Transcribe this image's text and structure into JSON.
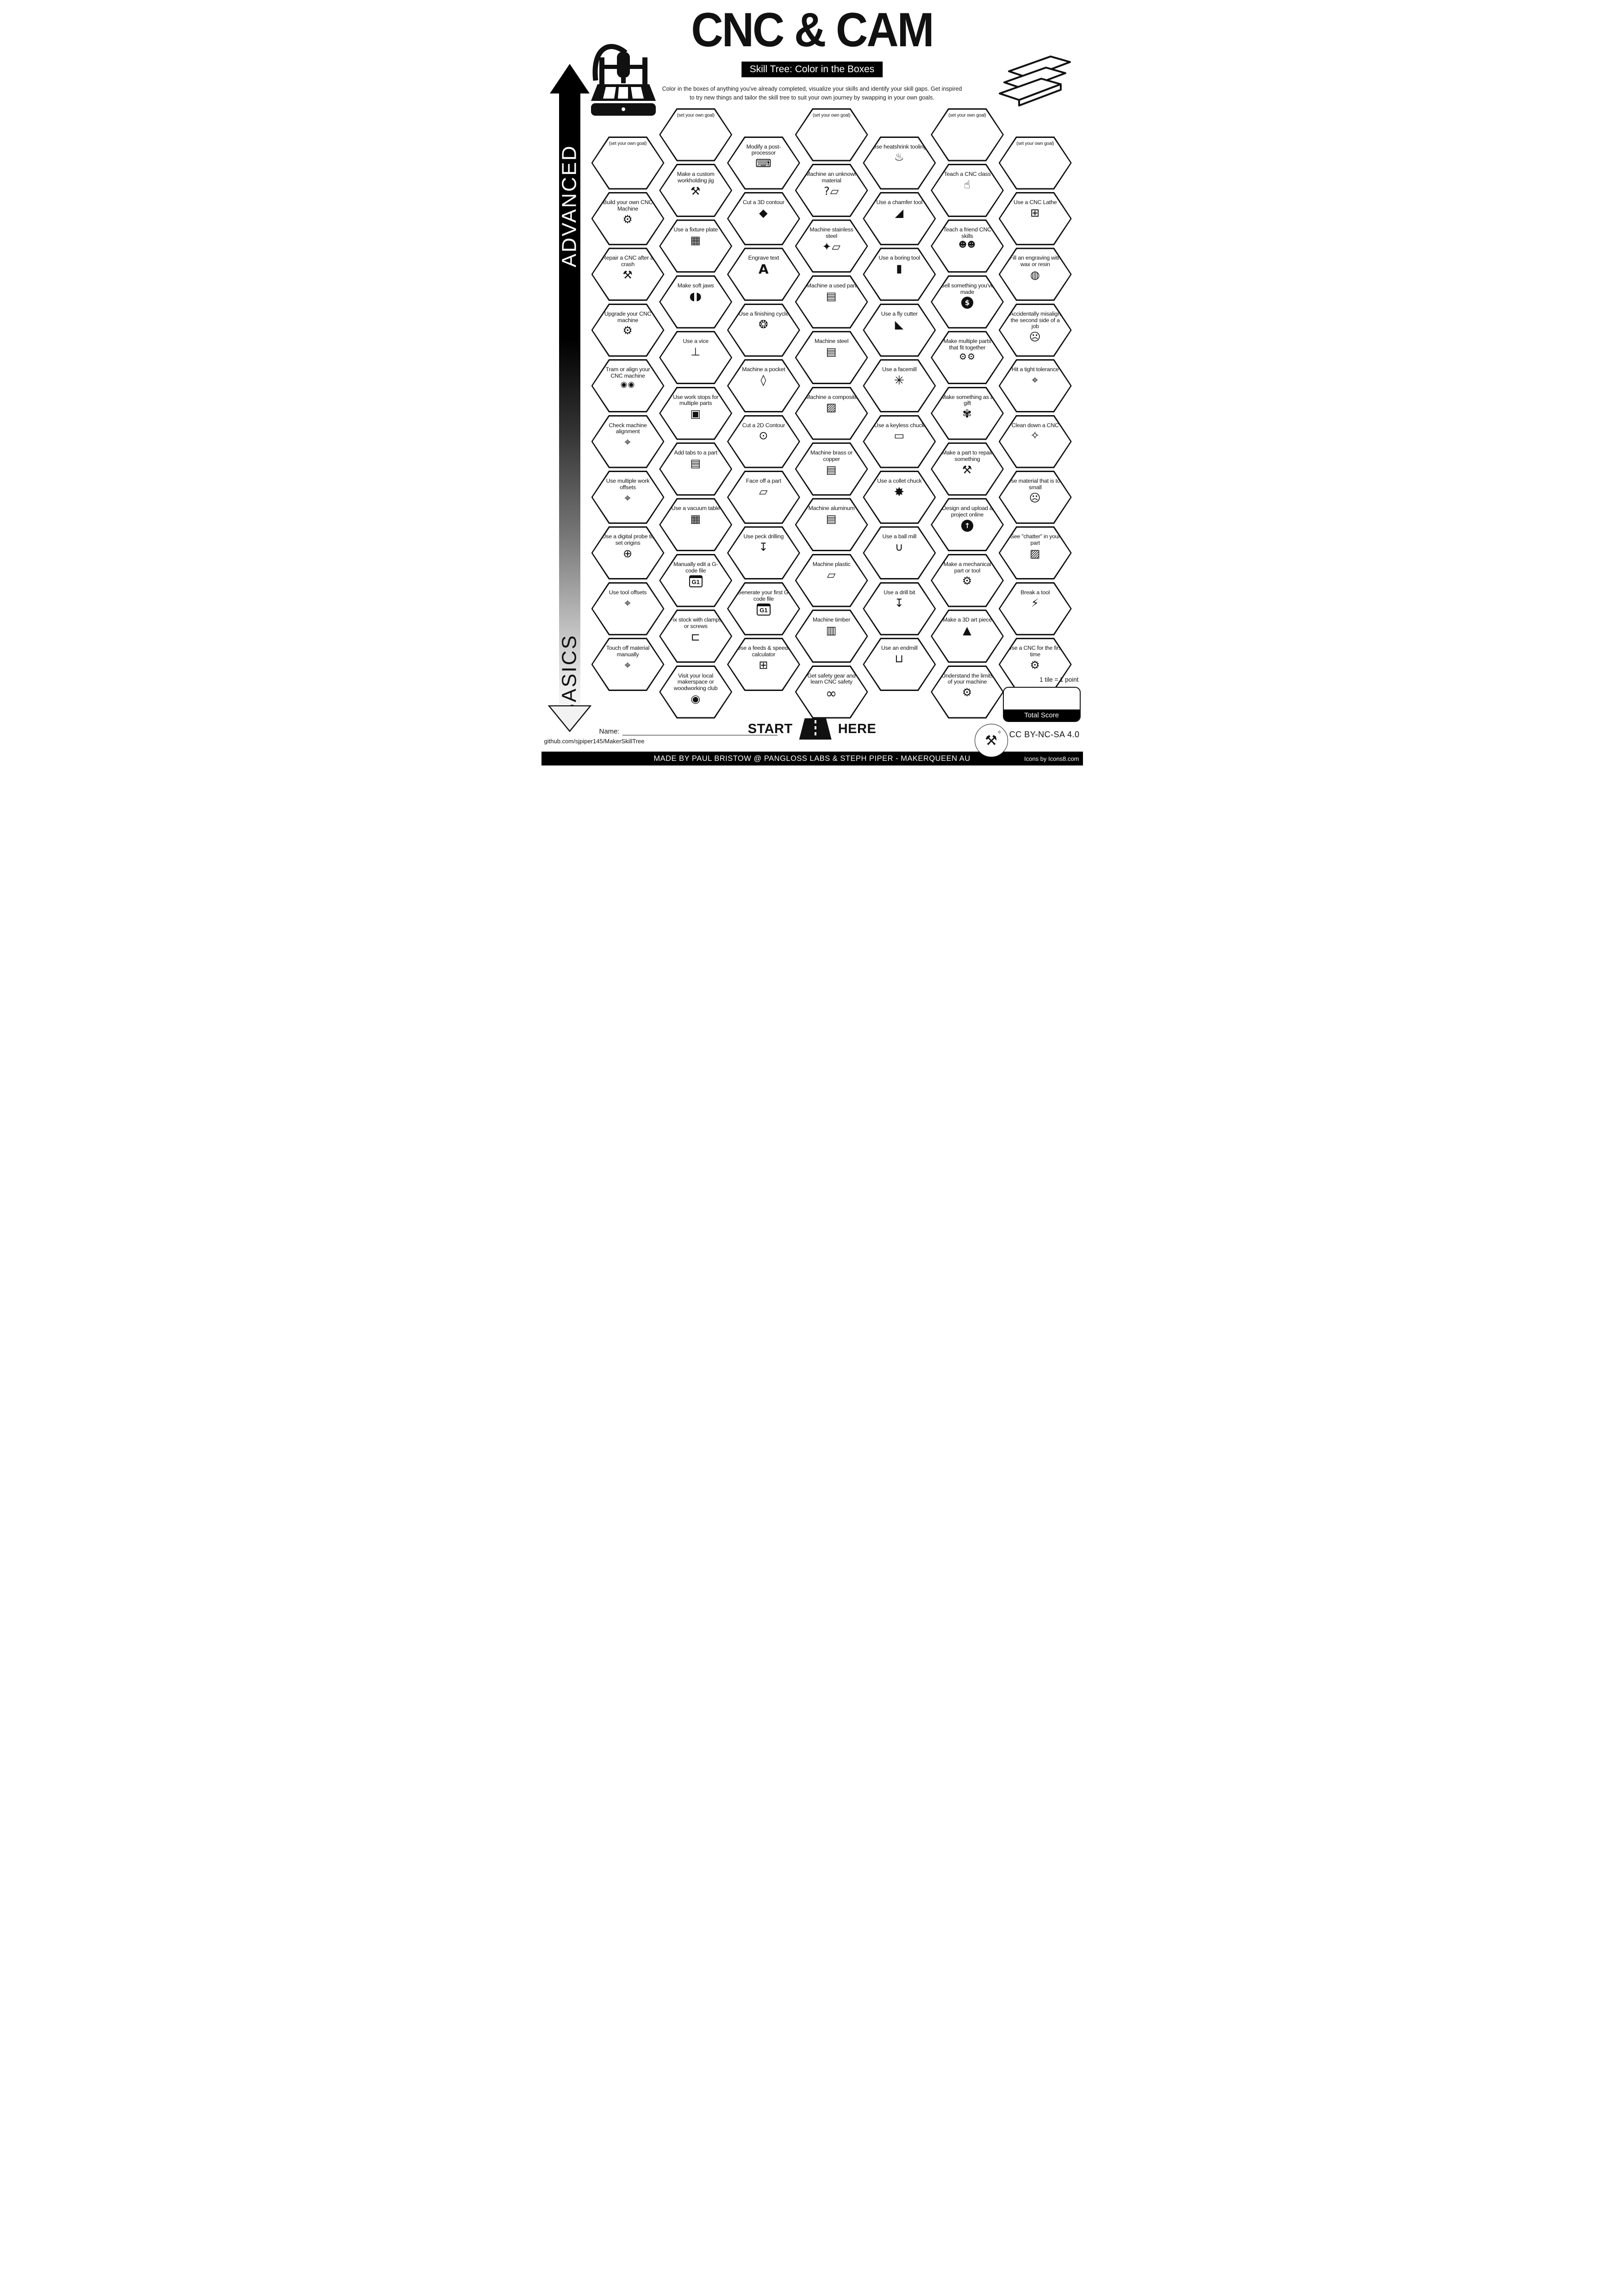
{
  "colors": {
    "ink": "#111111",
    "paper": "#ffffff"
  },
  "header": {
    "title": "CNC & CAM",
    "subtitle": "Skill Tree: Color in the Boxes",
    "description_line1": "Color in the boxes of anything you've already completed, visualize your skills and identify your skill gaps.  Get inspired",
    "description_line2": "to try new things and tailor the skill tree to suit your own journey by swapping in your own goals.",
    "left_logo_icon": "cnc-router-machine-icon",
    "right_logo_icon": "lumber-planks-icon"
  },
  "axis": {
    "top_label": "ADVANCED",
    "bottom_label": "BASICS"
  },
  "columns": [
    {
      "hexes": [
        {
          "label": "(set your own goal)",
          "icon": "",
          "glyph": ""
        },
        {
          "label": "Build your own CNC Machine",
          "icon": "cnc-machine-sparkles-icon",
          "glyph": "⚙"
        },
        {
          "label": "Repair a CNC after a crash",
          "icon": "crossed-screwdriver-wrench-icon",
          "glyph": "⚒"
        },
        {
          "label": "Upgrade your CNC machine",
          "icon": "cnc-mill-icon",
          "glyph": "⚙"
        },
        {
          "label": "Tram or align your CNC machine",
          "icon": "dial-gauges-icon",
          "glyph": "◉◉"
        },
        {
          "label": "Check machine alignment",
          "icon": "caliper-icon",
          "glyph": "⌖"
        },
        {
          "label": "Use multiple work offsets",
          "icon": "caliper-icon",
          "glyph": "⌖"
        },
        {
          "label": "Use a digital probe to set origins",
          "icon": "probe-crosshair-icon",
          "glyph": "⊕"
        },
        {
          "label": "Use tool offsets",
          "icon": "caliper-icon",
          "glyph": "⌖"
        },
        {
          "label": "Touch off material manually",
          "icon": "caliper-icon",
          "glyph": "⌖"
        }
      ]
    },
    {
      "hexes": [
        {
          "label": "(set your own goal)",
          "icon": "",
          "glyph": ""
        },
        {
          "label": "Make a custom workholding jig",
          "icon": "crossed-screwdriver-wrench-icon",
          "glyph": "⚒"
        },
        {
          "label": "Use a fixture plate",
          "icon": "dotted-plate-icon",
          "glyph": "▦"
        },
        {
          "label": "Make soft jaws",
          "icon": "soft-jaws-icon",
          "glyph": "◖◗"
        },
        {
          "label": "Use a vice",
          "icon": "vice-icon",
          "glyph": "⊥"
        },
        {
          "label": "Use work stops for multiple parts",
          "icon": "work-stops-icon",
          "glyph": "▣"
        },
        {
          "label": "Add tabs to a part",
          "icon": "tabs-plate-icon",
          "glyph": "▤"
        },
        {
          "label": "Use a vacuum table",
          "icon": "dotted-plate-icon",
          "glyph": "▦"
        },
        {
          "label": "Manually edit a G-code file",
          "icon": "gcode-file-icon",
          "glyph": "G1"
        },
        {
          "label": "Fix stock with clamps or screws",
          "icon": "c-clamp-icon",
          "glyph": "⊏"
        },
        {
          "label": "Visit your local makerspace or woodworking club",
          "icon": "location-pin-icon",
          "glyph": "◉"
        }
      ]
    },
    {
      "hexes": [
        {
          "label": "Modify a post-processor",
          "icon": "keyboard-icon",
          "glyph": "⌨"
        },
        {
          "label": "Cut a 3D contour",
          "icon": "contour-3d-icon",
          "glyph": "◆"
        },
        {
          "label": "Engrave text",
          "icon": "letter-a-icon",
          "glyph": "A"
        },
        {
          "label": "Use a finishing cycle",
          "icon": "finishing-cycle-sparkle-icon",
          "glyph": "❂"
        },
        {
          "label": "Machine a pocket",
          "icon": "pocket-icon",
          "glyph": "◊"
        },
        {
          "label": "Cut a 2D Contour",
          "icon": "contour-2d-icon",
          "glyph": "⊙"
        },
        {
          "label": "Face off a part",
          "icon": "lathe-tool-icon",
          "glyph": "▱"
        },
        {
          "label": "Use peck drilling",
          "icon": "peck-drill-icon",
          "glyph": "↧"
        },
        {
          "label": "Generate your first G-code file",
          "icon": "gcode-file-icon",
          "glyph": "G1"
        },
        {
          "label": "Use a feeds & speeds calculator",
          "icon": "calculator-icon",
          "glyph": "⊞"
        }
      ]
    },
    {
      "hexes": [
        {
          "label": "(set your own goal)",
          "icon": "",
          "glyph": ""
        },
        {
          "label": "Machine an unknown material",
          "icon": "unknown-material-icon",
          "glyph": "?▱"
        },
        {
          "label": "Machine stainless steel",
          "icon": "sparkle-bar-icon",
          "glyph": "✦▱"
        },
        {
          "label": "Machine a used part",
          "icon": "striped-bar-icon",
          "glyph": "▤"
        },
        {
          "label": "Machine steel",
          "icon": "striped-bar-icon",
          "glyph": "▤"
        },
        {
          "label": "Machine a composite",
          "icon": "dotted-bar-icon",
          "glyph": "▨"
        },
        {
          "label": "Machine brass or copper",
          "icon": "striped-bar-icon",
          "glyph": "▤"
        },
        {
          "label": "Machine aluminum",
          "icon": "striped-bar-icon",
          "glyph": "▤"
        },
        {
          "label": "Machine plastic",
          "icon": "plain-bar-icon",
          "glyph": "▱"
        },
        {
          "label": "Machine timber",
          "icon": "wood-plank-icon",
          "glyph": "▥"
        },
        {
          "label": "Get safety gear and learn CNC safety",
          "icon": "safety-goggles-icon",
          "glyph": "∞"
        }
      ]
    },
    {
      "hexes": [
        {
          "label": "Use heatshrink tooling",
          "icon": "flame-icon",
          "glyph": "♨"
        },
        {
          "label": "Use a chamfer tool",
          "icon": "chamfer-tool-icon",
          "glyph": "◢"
        },
        {
          "label": "Use a boring tool",
          "icon": "boring-tool-icon",
          "glyph": "▮"
        },
        {
          "label": "Use a fly cutter",
          "icon": "fly-cutter-icon",
          "glyph": "◣"
        },
        {
          "label": "Use a facemill",
          "icon": "facemill-icon",
          "glyph": "✳"
        },
        {
          "label": "Use a keyless chuck",
          "icon": "keyless-chuck-icon",
          "glyph": "▭"
        },
        {
          "label": "Use a collet chuck",
          "icon": "collet-icon",
          "glyph": "✸"
        },
        {
          "label": "Use a ball mill",
          "icon": "ball-mill-icon",
          "glyph": "∪"
        },
        {
          "label": "Use a drill bit",
          "icon": "drill-bit-icon",
          "glyph": "↧"
        },
        {
          "label": "Use an endmill",
          "icon": "endmill-icon",
          "glyph": "⊔"
        }
      ]
    },
    {
      "hexes": [
        {
          "label": "(set your own goal)",
          "icon": "",
          "glyph": ""
        },
        {
          "label": "Teach a CNC class",
          "icon": "teacher-board-icon",
          "glyph": "☝"
        },
        {
          "label": "Teach a friend CNC skills",
          "icon": "two-people-laptop-icon",
          "glyph": "☻☻"
        },
        {
          "label": "Sell something you've made",
          "icon": "dollar-circle-icon",
          "glyph": "$"
        },
        {
          "label": "Make multiple parts that fit together",
          "icon": "gears-icon",
          "glyph": "⚙⚙"
        },
        {
          "label": "Make something as a gift",
          "icon": "gift-bow-icon",
          "glyph": "✾"
        },
        {
          "label": "Make a part to repair something",
          "icon": "crossed-screwdriver-wrench-icon",
          "glyph": "⚒"
        },
        {
          "label": "Design and upload a project online",
          "icon": "upload-circle-icon",
          "glyph": "↑"
        },
        {
          "label": "Make a mechanical part or tool",
          "icon": "gear-icon",
          "glyph": "⚙"
        },
        {
          "label": "Make a 3D art piece",
          "icon": "easel-icon",
          "glyph": "▲"
        },
        {
          "label": "Understand the limits of your machine",
          "icon": "cnc-mill-icon",
          "glyph": "⚙"
        }
      ]
    },
    {
      "hexes": [
        {
          "label": "(set your own goal)",
          "icon": "",
          "glyph": ""
        },
        {
          "label": "Use a CNC Lathe",
          "icon": "cnc-lathe-icon",
          "glyph": "⊞"
        },
        {
          "label": "Fill an engraving with wax or resin",
          "icon": "paint-can-icon",
          "glyph": "◍"
        },
        {
          "label": "Accidentally misalign the second side of a job",
          "icon": "facepalm-icon",
          "glyph": "☹"
        },
        {
          "label": "Hit a tight tolerance",
          "icon": "caliper-icon",
          "glyph": "⌖"
        },
        {
          "label": "Clean down a CNC",
          "icon": "broom-sparkle-icon",
          "glyph": "✧"
        },
        {
          "label": "Use material that is too small",
          "icon": "facepalm-icon",
          "glyph": "☹"
        },
        {
          "label": "See \"chatter\" in your part",
          "icon": "chatter-stripes-icon",
          "glyph": "▨"
        },
        {
          "label": "Break a tool",
          "icon": "broken-tool-spark-icon",
          "glyph": "⚡"
        },
        {
          "label": "Use a CNC for the first time",
          "icon": "cnc-mill-icon",
          "glyph": "⚙"
        }
      ]
    }
  ],
  "start": {
    "start_label": "START",
    "here_label": "HERE",
    "icon": "road-icon"
  },
  "score": {
    "tile_note": "1 tile = 1 point",
    "total_label": "Total Score"
  },
  "footer": {
    "name_label": "Name:",
    "github": "github.com/sjpiper145/MakerSkillTree",
    "license": "CC BY-NC-SA 4.0",
    "badge_icon": "maker-tools-badge-icon",
    "credit": "MADE BY PAUL BRISTOW @ PANGLOSS LABS & STEPH PIPER  -  MAKERQUEEN AU",
    "icons_credit": "Icons by Icons8.com"
  }
}
